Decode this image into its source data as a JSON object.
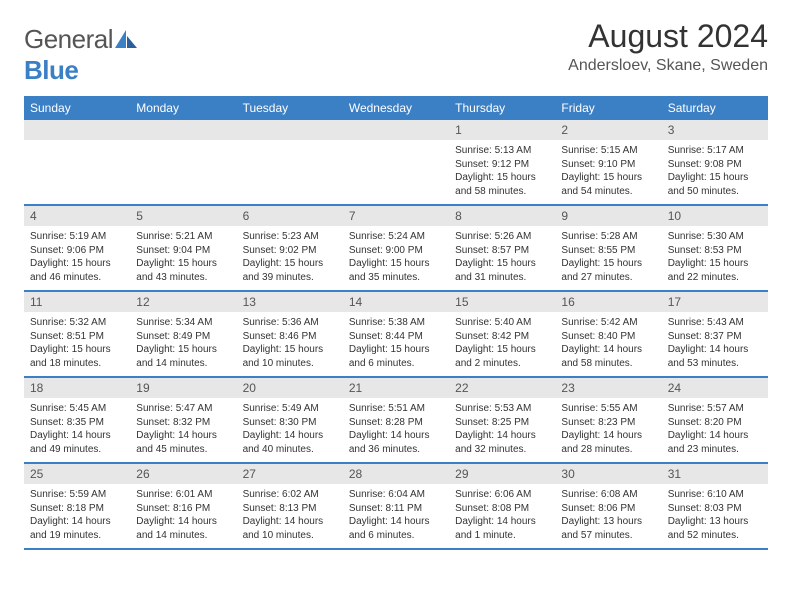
{
  "logo": {
    "text_general": "General",
    "text_blue": "Blue"
  },
  "title": "August 2024",
  "location": "Andersloev, Skane, Sweden",
  "colors": {
    "brand_blue": "#3b7fc4",
    "daynum_bg": "#e7e7e7",
    "text_dark": "#333333",
    "text_muted": "#555555",
    "white": "#ffffff"
  },
  "weekdays": [
    "Sunday",
    "Monday",
    "Tuesday",
    "Wednesday",
    "Thursday",
    "Friday",
    "Saturday"
  ],
  "weeks": [
    [
      null,
      null,
      null,
      null,
      {
        "n": "1",
        "sr": "Sunrise: 5:13 AM",
        "ss": "Sunset: 9:12 PM",
        "d1": "Daylight: 15 hours",
        "d2": "and 58 minutes."
      },
      {
        "n": "2",
        "sr": "Sunrise: 5:15 AM",
        "ss": "Sunset: 9:10 PM",
        "d1": "Daylight: 15 hours",
        "d2": "and 54 minutes."
      },
      {
        "n": "3",
        "sr": "Sunrise: 5:17 AM",
        "ss": "Sunset: 9:08 PM",
        "d1": "Daylight: 15 hours",
        "d2": "and 50 minutes."
      }
    ],
    [
      {
        "n": "4",
        "sr": "Sunrise: 5:19 AM",
        "ss": "Sunset: 9:06 PM",
        "d1": "Daylight: 15 hours",
        "d2": "and 46 minutes."
      },
      {
        "n": "5",
        "sr": "Sunrise: 5:21 AM",
        "ss": "Sunset: 9:04 PM",
        "d1": "Daylight: 15 hours",
        "d2": "and 43 minutes."
      },
      {
        "n": "6",
        "sr": "Sunrise: 5:23 AM",
        "ss": "Sunset: 9:02 PM",
        "d1": "Daylight: 15 hours",
        "d2": "and 39 minutes."
      },
      {
        "n": "7",
        "sr": "Sunrise: 5:24 AM",
        "ss": "Sunset: 9:00 PM",
        "d1": "Daylight: 15 hours",
        "d2": "and 35 minutes."
      },
      {
        "n": "8",
        "sr": "Sunrise: 5:26 AM",
        "ss": "Sunset: 8:57 PM",
        "d1": "Daylight: 15 hours",
        "d2": "and 31 minutes."
      },
      {
        "n": "9",
        "sr": "Sunrise: 5:28 AM",
        "ss": "Sunset: 8:55 PM",
        "d1": "Daylight: 15 hours",
        "d2": "and 27 minutes."
      },
      {
        "n": "10",
        "sr": "Sunrise: 5:30 AM",
        "ss": "Sunset: 8:53 PM",
        "d1": "Daylight: 15 hours",
        "d2": "and 22 minutes."
      }
    ],
    [
      {
        "n": "11",
        "sr": "Sunrise: 5:32 AM",
        "ss": "Sunset: 8:51 PM",
        "d1": "Daylight: 15 hours",
        "d2": "and 18 minutes."
      },
      {
        "n": "12",
        "sr": "Sunrise: 5:34 AM",
        "ss": "Sunset: 8:49 PM",
        "d1": "Daylight: 15 hours",
        "d2": "and 14 minutes."
      },
      {
        "n": "13",
        "sr": "Sunrise: 5:36 AM",
        "ss": "Sunset: 8:46 PM",
        "d1": "Daylight: 15 hours",
        "d2": "and 10 minutes."
      },
      {
        "n": "14",
        "sr": "Sunrise: 5:38 AM",
        "ss": "Sunset: 8:44 PM",
        "d1": "Daylight: 15 hours",
        "d2": "and 6 minutes."
      },
      {
        "n": "15",
        "sr": "Sunrise: 5:40 AM",
        "ss": "Sunset: 8:42 PM",
        "d1": "Daylight: 15 hours",
        "d2": "and 2 minutes."
      },
      {
        "n": "16",
        "sr": "Sunrise: 5:42 AM",
        "ss": "Sunset: 8:40 PM",
        "d1": "Daylight: 14 hours",
        "d2": "and 58 minutes."
      },
      {
        "n": "17",
        "sr": "Sunrise: 5:43 AM",
        "ss": "Sunset: 8:37 PM",
        "d1": "Daylight: 14 hours",
        "d2": "and 53 minutes."
      }
    ],
    [
      {
        "n": "18",
        "sr": "Sunrise: 5:45 AM",
        "ss": "Sunset: 8:35 PM",
        "d1": "Daylight: 14 hours",
        "d2": "and 49 minutes."
      },
      {
        "n": "19",
        "sr": "Sunrise: 5:47 AM",
        "ss": "Sunset: 8:32 PM",
        "d1": "Daylight: 14 hours",
        "d2": "and 45 minutes."
      },
      {
        "n": "20",
        "sr": "Sunrise: 5:49 AM",
        "ss": "Sunset: 8:30 PM",
        "d1": "Daylight: 14 hours",
        "d2": "and 40 minutes."
      },
      {
        "n": "21",
        "sr": "Sunrise: 5:51 AM",
        "ss": "Sunset: 8:28 PM",
        "d1": "Daylight: 14 hours",
        "d2": "and 36 minutes."
      },
      {
        "n": "22",
        "sr": "Sunrise: 5:53 AM",
        "ss": "Sunset: 8:25 PM",
        "d1": "Daylight: 14 hours",
        "d2": "and 32 minutes."
      },
      {
        "n": "23",
        "sr": "Sunrise: 5:55 AM",
        "ss": "Sunset: 8:23 PM",
        "d1": "Daylight: 14 hours",
        "d2": "and 28 minutes."
      },
      {
        "n": "24",
        "sr": "Sunrise: 5:57 AM",
        "ss": "Sunset: 8:20 PM",
        "d1": "Daylight: 14 hours",
        "d2": "and 23 minutes."
      }
    ],
    [
      {
        "n": "25",
        "sr": "Sunrise: 5:59 AM",
        "ss": "Sunset: 8:18 PM",
        "d1": "Daylight: 14 hours",
        "d2": "and 19 minutes."
      },
      {
        "n": "26",
        "sr": "Sunrise: 6:01 AM",
        "ss": "Sunset: 8:16 PM",
        "d1": "Daylight: 14 hours",
        "d2": "and 14 minutes."
      },
      {
        "n": "27",
        "sr": "Sunrise: 6:02 AM",
        "ss": "Sunset: 8:13 PM",
        "d1": "Daylight: 14 hours",
        "d2": "and 10 minutes."
      },
      {
        "n": "28",
        "sr": "Sunrise: 6:04 AM",
        "ss": "Sunset: 8:11 PM",
        "d1": "Daylight: 14 hours",
        "d2": "and 6 minutes."
      },
      {
        "n": "29",
        "sr": "Sunrise: 6:06 AM",
        "ss": "Sunset: 8:08 PM",
        "d1": "Daylight: 14 hours",
        "d2": "and 1 minute."
      },
      {
        "n": "30",
        "sr": "Sunrise: 6:08 AM",
        "ss": "Sunset: 8:06 PM",
        "d1": "Daylight: 13 hours",
        "d2": "and 57 minutes."
      },
      {
        "n": "31",
        "sr": "Sunrise: 6:10 AM",
        "ss": "Sunset: 8:03 PM",
        "d1": "Daylight: 13 hours",
        "d2": "and 52 minutes."
      }
    ]
  ]
}
